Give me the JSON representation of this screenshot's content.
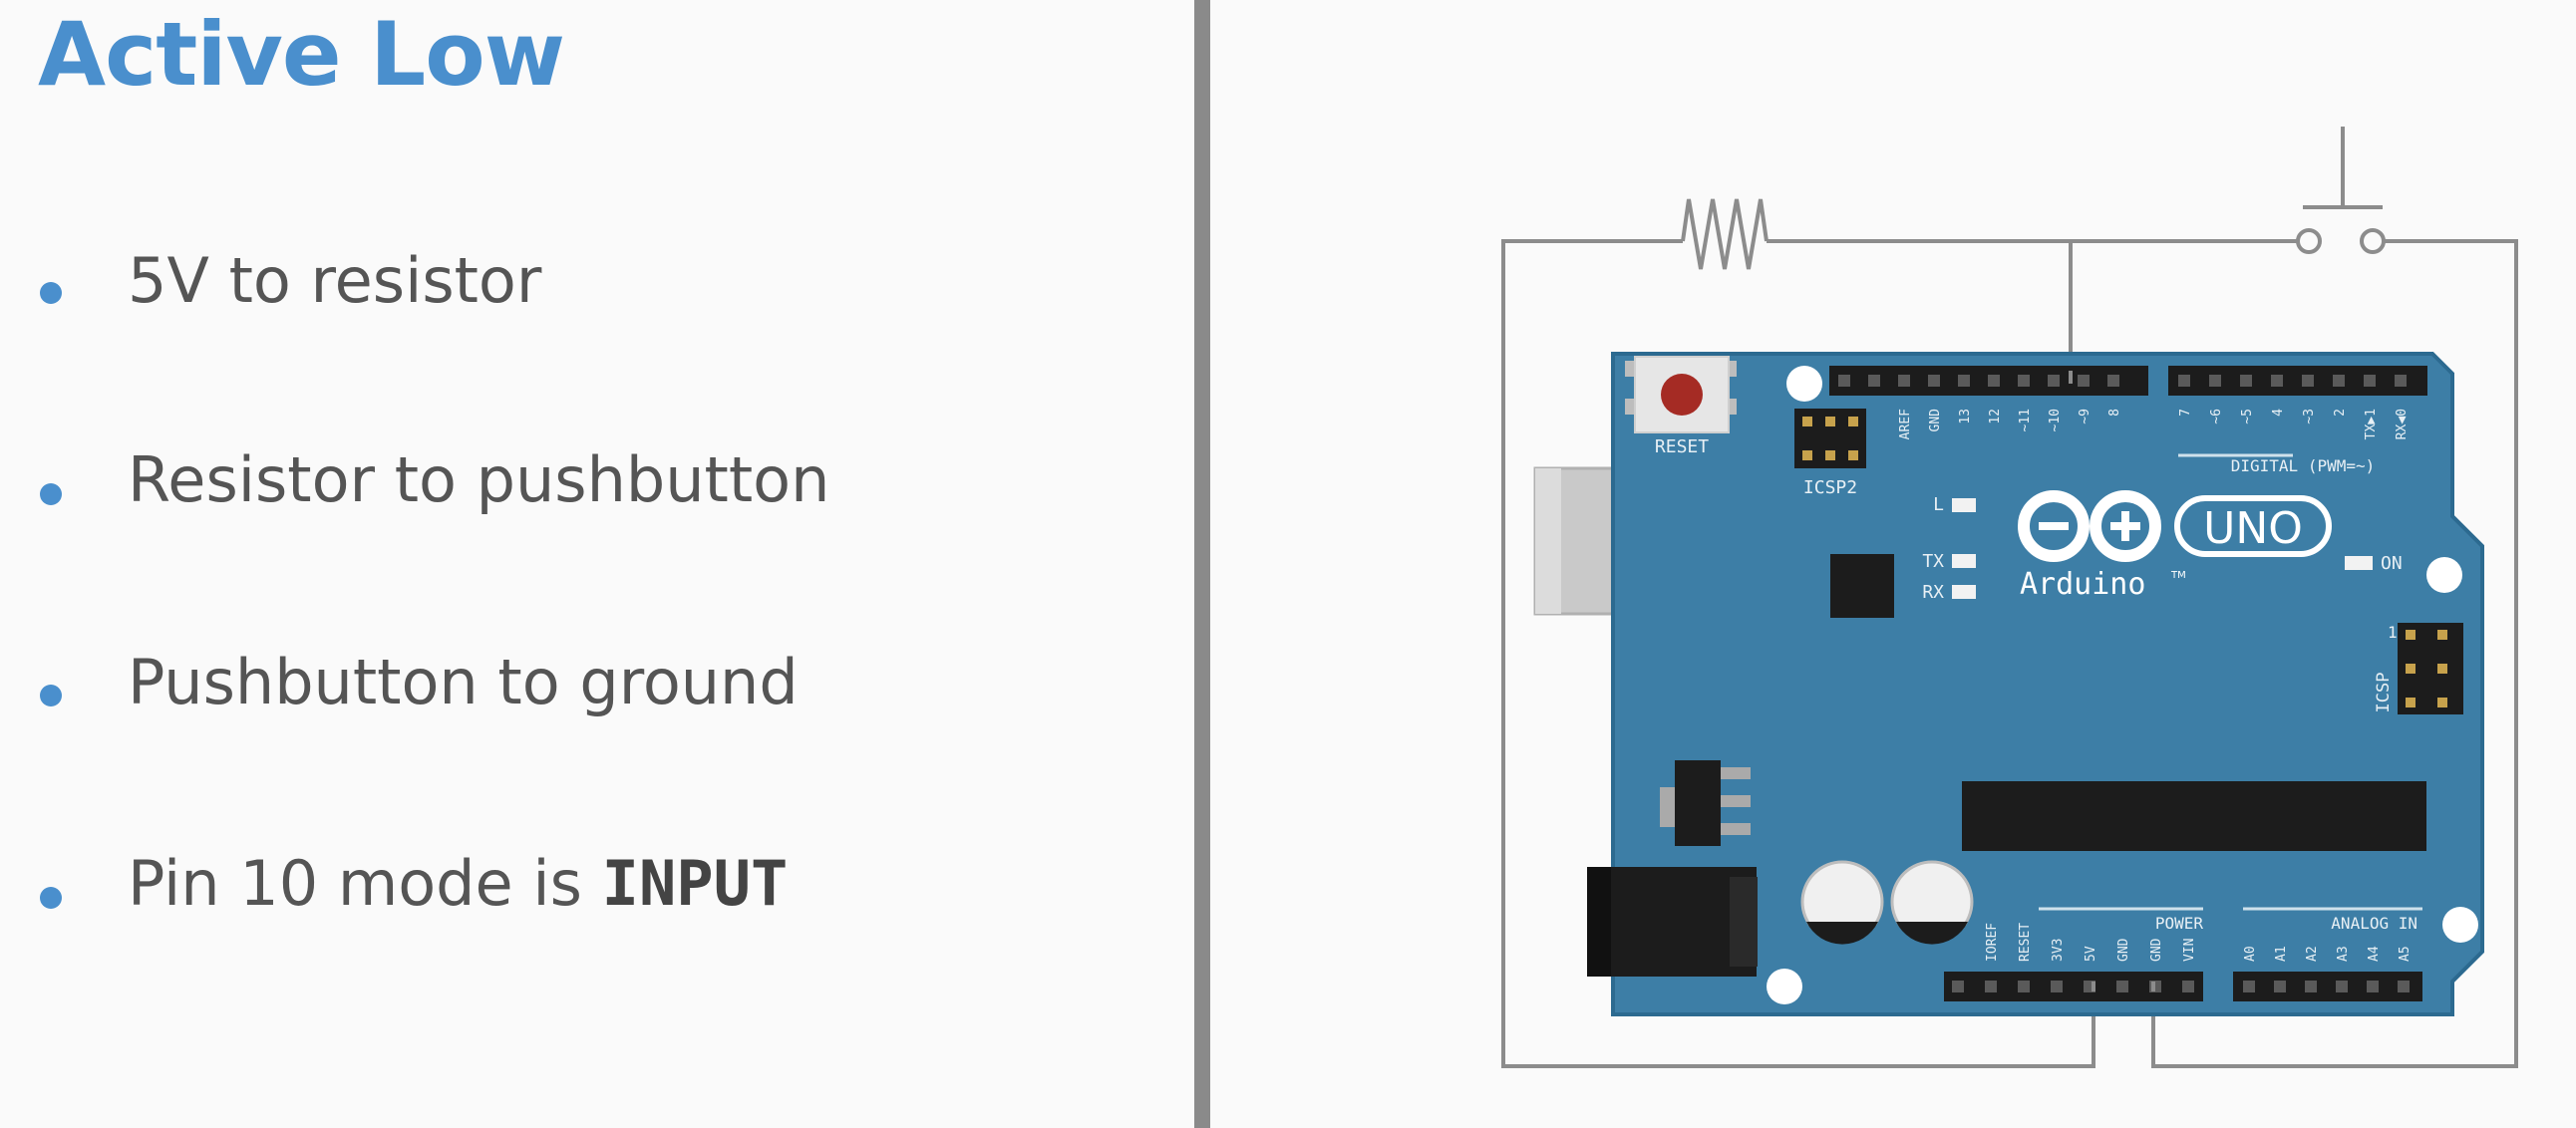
{
  "slide": {
    "title": "Active Low",
    "bullets": [
      {
        "text": "5V to resistor"
      },
      {
        "text": "Resistor to pushbutton"
      },
      {
        "text": "Pushbutton to ground"
      },
      {
        "text": "Pin 10 mode is ",
        "code": "INPUT"
      }
    ]
  },
  "board": {
    "reset": "RESET",
    "icsp2": "ICSP2",
    "icsp": "ICSP",
    "icsp_pin1": "1",
    "led_l": "L",
    "led_tx": "TX",
    "led_rx": "RX",
    "led_on": "ON",
    "digital": "DIGITAL (PWM=~)",
    "power": "POWER",
    "analog": "ANALOG IN",
    "brand": "Arduino",
    "tm": "TM",
    "model": "UNO",
    "digital_pins": [
      "AREF",
      "GND",
      "13",
      "12",
      "~11",
      "~10",
      "~9",
      "8",
      "7",
      "~6",
      "~5",
      "4",
      "~3",
      "2",
      "TX▶1",
      "RX◀0"
    ],
    "power_pins": [
      "IOREF",
      "RESET",
      "3V3",
      "5V",
      "GND",
      "GND",
      "VIN"
    ],
    "analog_pins": [
      "A0",
      "A1",
      "A2",
      "A3",
      "A4",
      "A5"
    ]
  },
  "colors": {
    "accent": "#4a8fcd",
    "board": "#3d7ea6",
    "board_edge": "#2c6a90",
    "wire": "#8c8c8c",
    "text": "#555555"
  }
}
